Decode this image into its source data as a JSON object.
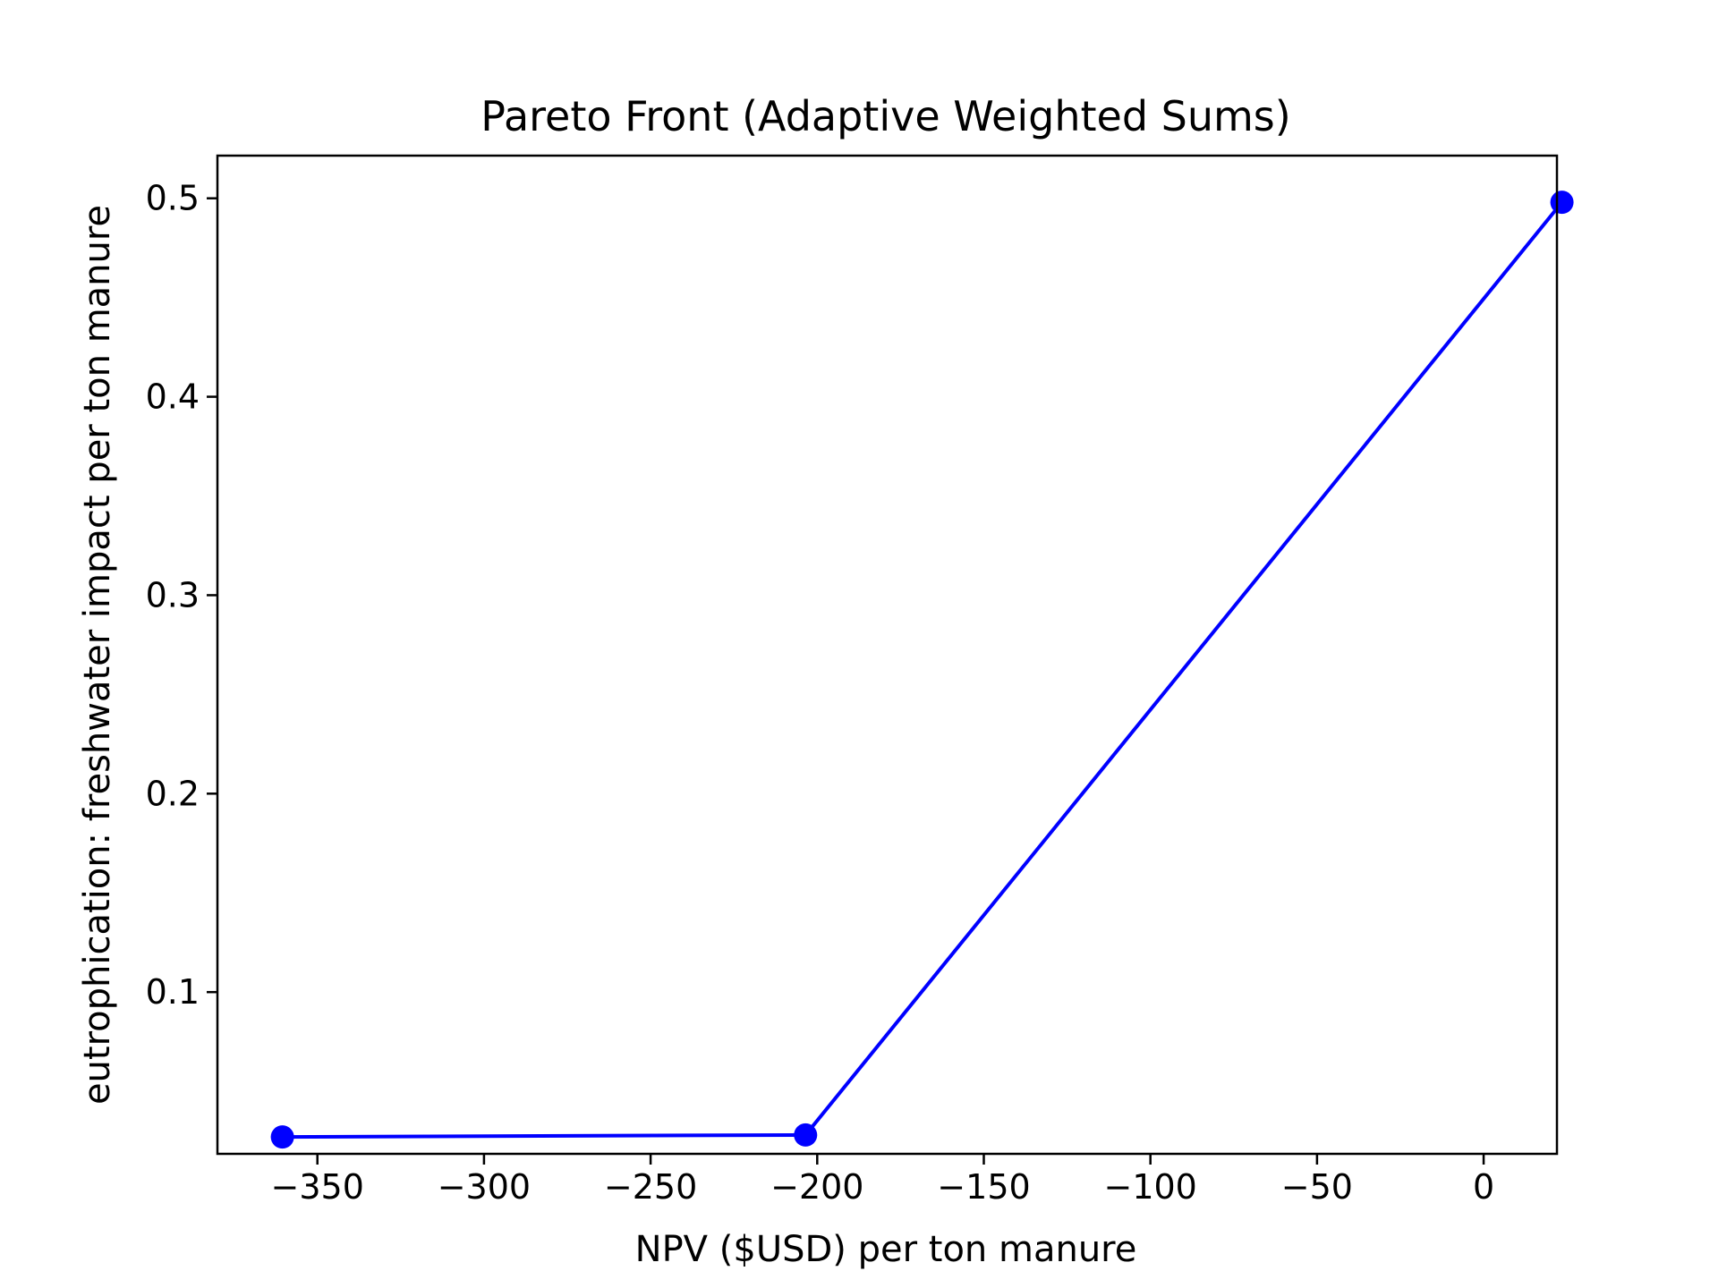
{
  "chart_data": {
    "type": "line",
    "title": "Pareto Front (Adaptive Weighted Sums)",
    "xlabel": "NPV ($USD) per ton manure",
    "ylabel": "eutrophication: freshwater impact per ton manure",
    "xlim": [
      -380,
      22
    ],
    "ylim": [
      0.0185,
      0.5215
    ],
    "xticks": [
      -350,
      -300,
      -250,
      -200,
      -150,
      -100,
      -50,
      0
    ],
    "xtick_labels": [
      "−350",
      "−300",
      "−250",
      "−200",
      "−150",
      "−100",
      "−50",
      "0"
    ],
    "yticks": [
      0.1,
      0.2,
      0.3,
      0.4,
      0.5
    ],
    "ytick_labels": [
      "0.1",
      "0.2",
      "0.3",
      "0.4",
      "0.5"
    ],
    "grid": false,
    "series": [
      {
        "points": [
          {
            "x": -360.5,
            "y": 0.027
          },
          {
            "x": -203.5,
            "y": 0.028
          },
          {
            "x": 23.5,
            "y": 0.498
          }
        ],
        "color": "#0000ff",
        "marker": "circle"
      }
    ]
  }
}
